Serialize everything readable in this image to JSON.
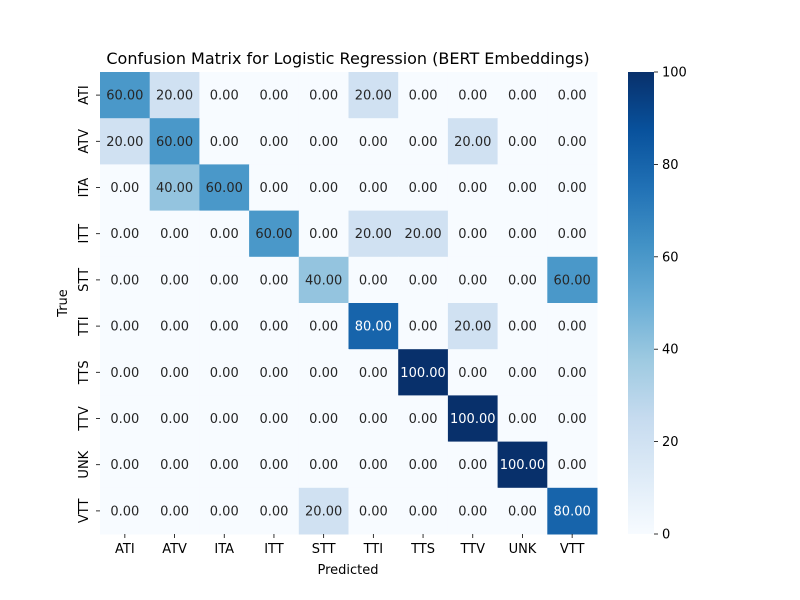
{
  "chart_data": {
    "type": "heatmap",
    "title": "Confusion Matrix for Logistic Regression (BERT Embeddings)",
    "xlabel": "Predicted",
    "ylabel": "True",
    "x_categories": [
      "ATI",
      "ATV",
      "ITA",
      "ITT",
      "STT",
      "TTI",
      "TTS",
      "TTV",
      "UNK",
      "VTT"
    ],
    "y_categories": [
      "ATI",
      "ATV",
      "ITA",
      "ITT",
      "STT",
      "TTI",
      "TTS",
      "TTV",
      "UNK",
      "VTT"
    ],
    "values": [
      [
        60,
        20,
        0,
        0,
        0,
        20,
        0,
        0,
        0,
        0
      ],
      [
        20,
        60,
        0,
        0,
        0,
        0,
        0,
        20,
        0,
        0
      ],
      [
        0,
        40,
        60,
        0,
        0,
        0,
        0,
        0,
        0,
        0
      ],
      [
        0,
        0,
        0,
        60,
        0,
        20,
        20,
        0,
        0,
        0
      ],
      [
        0,
        0,
        0,
        0,
        40,
        0,
        0,
        0,
        0,
        60
      ],
      [
        0,
        0,
        0,
        0,
        0,
        80,
        0,
        20,
        0,
        0
      ],
      [
        0,
        0,
        0,
        0,
        0,
        0,
        100,
        0,
        0,
        0
      ],
      [
        0,
        0,
        0,
        0,
        0,
        0,
        0,
        100,
        0,
        0
      ],
      [
        0,
        0,
        0,
        0,
        0,
        0,
        0,
        0,
        100,
        0
      ],
      [
        0,
        0,
        0,
        0,
        20,
        0,
        0,
        0,
        0,
        80
      ]
    ],
    "value_format_decimals": 2,
    "colormap": "Blues",
    "colorbar": {
      "range": [
        0,
        100
      ],
      "ticks": [
        0,
        20,
        40,
        60,
        80,
        100
      ]
    }
  }
}
